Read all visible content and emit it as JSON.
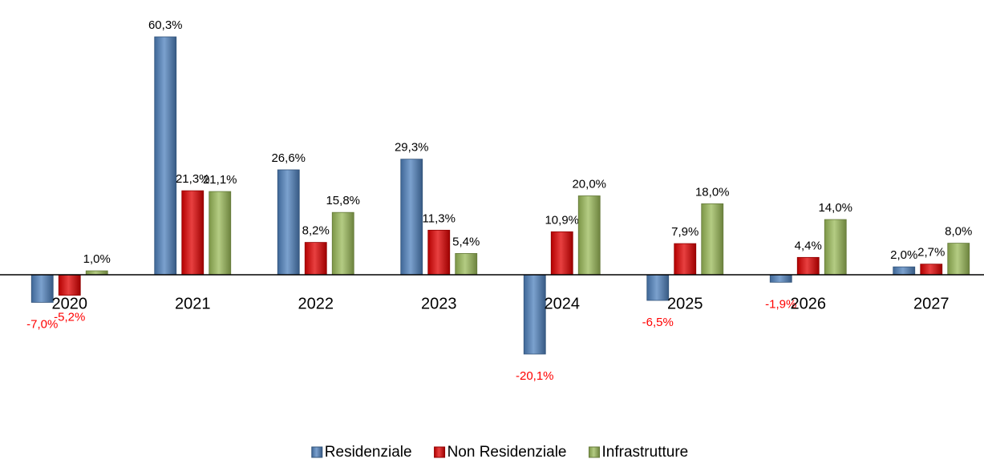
{
  "chart_data": {
    "type": "bar",
    "categories": [
      "2020",
      "2021",
      "2022",
      "2023",
      "2024",
      "2025",
      "2026",
      "2027"
    ],
    "series": [
      {
        "name": "Residenziale",
        "color": "#4f81bd",
        "values": [
          -7.0,
          60.3,
          26.6,
          29.3,
          -20.1,
          -6.5,
          -1.9,
          2.0
        ],
        "value_labels": [
          "-7,0%",
          "60,3%",
          "26,6%",
          "29,3%",
          "-20,1%",
          "-6,5%",
          "-1,9%",
          "2,0%"
        ]
      },
      {
        "name": "Non Residenziale",
        "color": "#e00000",
        "values": [
          -5.2,
          21.3,
          8.2,
          11.3,
          10.9,
          7.9,
          4.4,
          2.7
        ],
        "value_labels": [
          "-5,2%",
          "21,3%",
          "8,2%",
          "11,3%",
          "10,9%",
          "7,9%",
          "4,4%",
          "2,7%"
        ]
      },
      {
        "name": "Infrastrutture",
        "color": "#9bbb59",
        "values": [
          1.0,
          21.1,
          15.8,
          5.4,
          20.0,
          18.0,
          14.0,
          8.0
        ],
        "value_labels": [
          "1,0%",
          "21,1%",
          "15,8%",
          "5,4%",
          "20,0%",
          "18,0%",
          "14,0%",
          "8,0%"
        ]
      }
    ],
    "legend": "bottom"
  }
}
